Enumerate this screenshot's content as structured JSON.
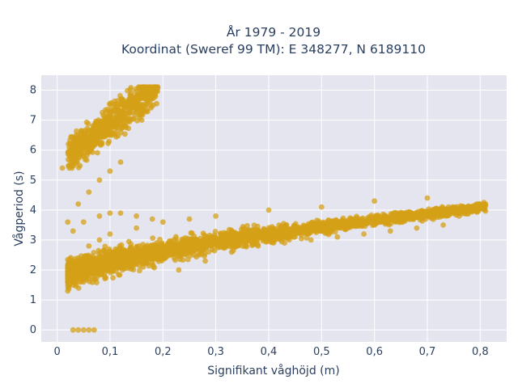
{
  "chart_data": {
    "type": "scatter",
    "title_line1": "År 1979 - 2019",
    "title_line2": "Koordinat (Sweref 99 TM): E 348277, N 6189110",
    "xlabel": "Signifikant våghöjd (m)",
    "ylabel": "Vågperiod (s)",
    "xlim": [
      -0.03,
      0.85
    ],
    "ylim": [
      -0.4,
      8.5
    ],
    "xticks": [
      0,
      0.1,
      0.2,
      0.3,
      0.4,
      0.5,
      0.6,
      0.7,
      0.8
    ],
    "xtick_labels": [
      "0",
      "0,1",
      "0,2",
      "0,3",
      "0,4",
      "0,5",
      "0,6",
      "0,7",
      "0,8"
    ],
    "yticks": [
      0,
      1,
      2,
      3,
      4,
      5,
      6,
      7,
      8
    ],
    "ytick_labels": [
      "0",
      "1",
      "2",
      "3",
      "4",
      "5",
      "6",
      "7",
      "8"
    ],
    "grid": true,
    "background": "#e5e5f0",
    "marker_color": "#d4a017",
    "series": [
      {
        "x": [
          0.03,
          0.04,
          0.05,
          0.06,
          0.07,
          0.02,
          0.03,
          0.05,
          0.07,
          0.09,
          0.1,
          0.12,
          0.15,
          0.18,
          0.22,
          0.26,
          0.3,
          0.35,
          0.4,
          0.45,
          0.5,
          0.55,
          0.6,
          0.65,
          0.7,
          0.75,
          0.78,
          0.8,
          0.81,
          0.04,
          0.06,
          0.08,
          0.1,
          0.15,
          0.2,
          0.25,
          0.3,
          0.4,
          0.5,
          0.6,
          0.7,
          0.01,
          0.03,
          0.05,
          0.07,
          0.1,
          0.13,
          0.16,
          0.03,
          0.05,
          0.07,
          0.09,
          0.11,
          0.13,
          0.15,
          0.18,
          0.19,
          0.02,
          0.04,
          0.06,
          0.08,
          0.1,
          0.12,
          0.03,
          0.05,
          0.08,
          0.1,
          0.12,
          0.15,
          0.18,
          0.23,
          0.28,
          0.33,
          0.38,
          0.43,
          0.48,
          0.53,
          0.58,
          0.63,
          0.68,
          0.73,
          0.76
        ],
        "y": [
          0.0,
          0.0,
          0.0,
          0.0,
          0.0,
          1.3,
          1.5,
          1.6,
          1.7,
          1.9,
          2.0,
          2.1,
          2.2,
          2.4,
          2.6,
          2.8,
          2.9,
          3.0,
          3.1,
          3.2,
          3.3,
          3.4,
          3.5,
          3.6,
          3.8,
          3.9,
          4.0,
          4.1,
          4.2,
          2.4,
          2.8,
          3.0,
          3.2,
          3.4,
          3.6,
          3.7,
          3.8,
          4.0,
          4.1,
          4.3,
          4.4,
          5.4,
          5.6,
          5.8,
          6.2,
          6.5,
          6.8,
          7.0,
          6.0,
          6.4,
          6.8,
          7.1,
          7.3,
          7.5,
          7.8,
          8.0,
          8.1,
          3.6,
          4.2,
          4.6,
          5.0,
          5.3,
          5.6,
          3.3,
          3.6,
          3.8,
          3.9,
          3.9,
          3.8,
          3.7,
          2.0,
          2.3,
          2.6,
          2.8,
          2.9,
          3.0,
          3.1,
          3.2,
          3.3,
          3.4,
          3.5,
          3.8
        ]
      }
    ]
  }
}
